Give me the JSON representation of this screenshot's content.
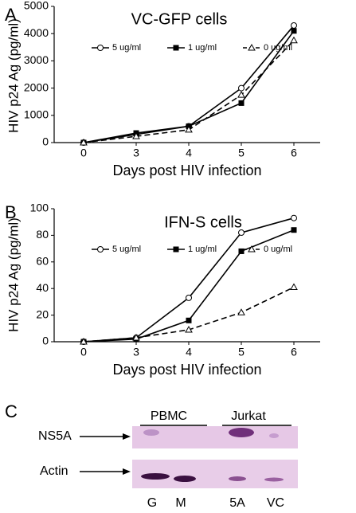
{
  "chart_data": [
    {
      "type": "line",
      "panel": "A",
      "title": "VC-GFP cells",
      "y_label": "HIV p24 Ag (pg/ml)",
      "x_label": "Days post HIV infection",
      "categories": [
        "0",
        "3",
        "4",
        "5",
        "6"
      ],
      "ylim": [
        0,
        5000
      ],
      "yticks": [
        0,
        1000,
        2000,
        3000,
        4000,
        5000
      ],
      "series": [
        {
          "name": "5 ug/ml",
          "color": "#000000",
          "marker": "circle",
          "dashed": false,
          "values": [
            0,
            300,
            600,
            2000,
            4300
          ]
        },
        {
          "name": "1 ug/ml",
          "color": "#000000",
          "marker": "square",
          "dashed": false,
          "values": [
            0,
            350,
            600,
            1450,
            4100
          ]
        },
        {
          "name": "0 ug/ml",
          "color": "#000000",
          "marker": "triangle",
          "dashed": true,
          "values": [
            0,
            230,
            470,
            1750,
            3750
          ]
        }
      ]
    },
    {
      "type": "line",
      "panel": "B",
      "title": "IFN-S cells",
      "y_label": "HIV p24 Ag (pg/ml)",
      "x_label": "Days post HIV infection",
      "categories": [
        "0",
        "3",
        "4",
        "5",
        "6"
      ],
      "ylim": [
        0,
        100
      ],
      "yticks": [
        0,
        20,
        40,
        60,
        80,
        100
      ],
      "series": [
        {
          "name": "5 ug/ml",
          "color": "#000000",
          "marker": "circle",
          "dashed": false,
          "values": [
            0,
            3,
            33,
            82,
            93
          ]
        },
        {
          "name": "1 ug/ml",
          "color": "#000000",
          "marker": "square",
          "dashed": false,
          "values": [
            0,
            2,
            16,
            68,
            84
          ]
        },
        {
          "name": "0 ug/ml",
          "color": "#000000",
          "marker": "triangle",
          "dashed": true,
          "values": [
            0,
            3,
            9,
            22,
            41
          ]
        }
      ]
    }
  ],
  "blot": {
    "panel": "C",
    "groups": [
      "PBMC",
      "Jurkat"
    ],
    "rows": [
      "NS5A",
      "Actin"
    ],
    "lanes": [
      "G",
      "M",
      "5A",
      "VC"
    ]
  }
}
